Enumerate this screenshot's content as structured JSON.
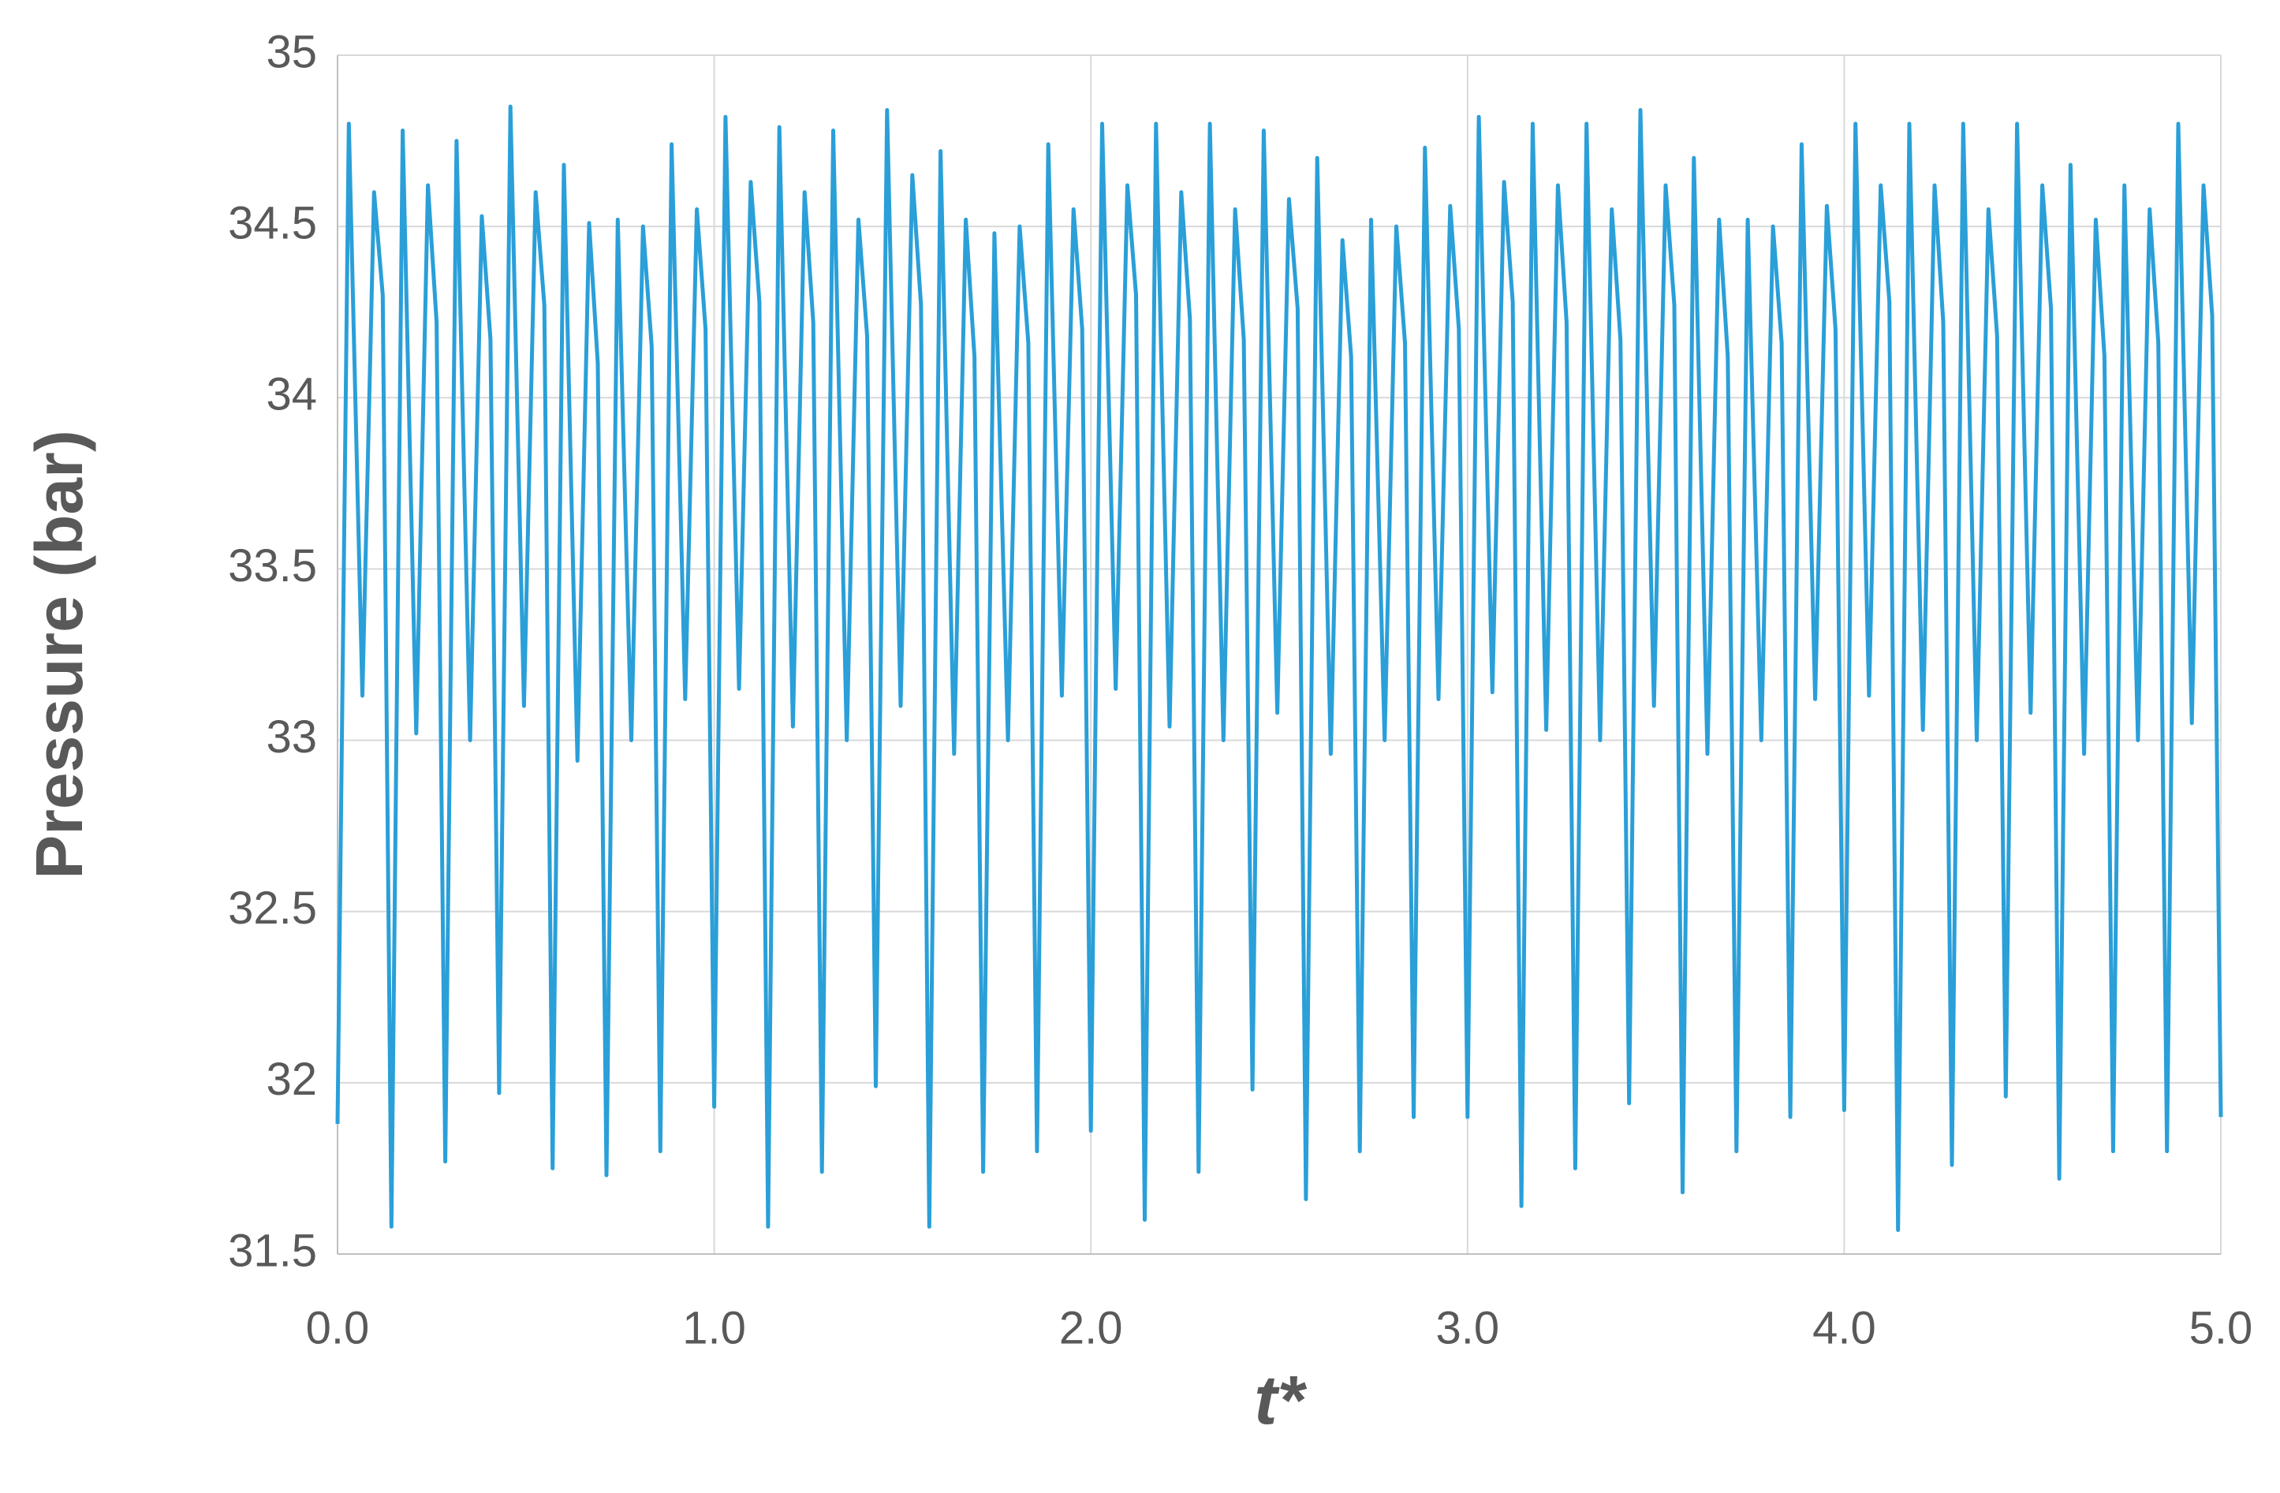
{
  "chart_data": {
    "type": "line",
    "ylabel": "Pressure (bar)",
    "xlabel": "t*",
    "xlim": [
      0,
      5
    ],
    "ylim": [
      31.5,
      35
    ],
    "xticks": [
      {
        "value": 0,
        "label": "0.0"
      },
      {
        "value": 1,
        "label": "1.0"
      },
      {
        "value": 2,
        "label": "2.0"
      },
      {
        "value": 3,
        "label": "3.0"
      },
      {
        "value": 4,
        "label": "4.0"
      },
      {
        "value": 5,
        "label": "5.0"
      }
    ],
    "yticks": [
      31.5,
      32,
      32.5,
      33,
      33.5,
      34,
      34.5,
      35
    ],
    "grid": true,
    "series": [
      {
        "color": "#2a9fd8",
        "x": [
          0.0,
          0.03,
          0.066,
          0.097,
          0.12,
          0.143,
          0.173,
          0.209,
          0.24,
          0.263,
          0.286,
          0.316,
          0.352,
          0.383,
          0.406,
          0.429,
          0.459,
          0.495,
          0.526,
          0.549,
          0.571,
          0.601,
          0.637,
          0.668,
          0.691,
          0.714,
          0.744,
          0.78,
          0.811,
          0.834,
          0.857,
          0.887,
          0.923,
          0.954,
          0.977,
          1.0,
          1.03,
          1.066,
          1.097,
          1.12,
          1.143,
          1.173,
          1.209,
          1.24,
          1.263,
          1.286,
          1.316,
          1.352,
          1.383,
          1.406,
          1.429,
          1.459,
          1.495,
          1.526,
          1.549,
          1.571,
          1.601,
          1.637,
          1.668,
          1.691,
          1.714,
          1.744,
          1.78,
          1.811,
          1.834,
          1.857,
          1.887,
          1.923,
          1.954,
          1.977,
          2.0,
          2.03,
          2.066,
          2.097,
          2.12,
          2.143,
          2.173,
          2.209,
          2.24,
          2.263,
          2.286,
          2.316,
          2.352,
          2.383,
          2.406,
          2.429,
          2.459,
          2.495,
          2.526,
          2.549,
          2.571,
          2.601,
          2.637,
          2.668,
          2.691,
          2.714,
          2.744,
          2.78,
          2.811,
          2.834,
          2.857,
          2.887,
          2.923,
          2.954,
          2.977,
          3.0,
          3.03,
          3.066,
          3.097,
          3.12,
          3.143,
          3.173,
          3.209,
          3.24,
          3.263,
          3.286,
          3.316,
          3.352,
          3.383,
          3.406,
          3.429,
          3.459,
          3.495,
          3.526,
          3.549,
          3.571,
          3.601,
          3.637,
          3.668,
          3.691,
          3.714,
          3.744,
          3.78,
          3.811,
          3.834,
          3.857,
          3.887,
          3.923,
          3.954,
          3.977,
          4.0,
          4.03,
          4.066,
          4.097,
          4.12,
          4.143,
          4.173,
          4.209,
          4.24,
          4.263,
          4.286,
          4.316,
          4.352,
          4.383,
          4.406,
          4.429,
          4.459,
          4.495,
          4.526,
          4.549,
          4.571,
          4.601,
          4.637,
          4.668,
          4.691,
          4.714,
          4.744,
          4.78,
          4.811,
          4.834,
          4.857,
          4.887,
          4.923,
          4.954,
          4.977,
          5.0
        ],
        "values": [
          31.88,
          34.8,
          33.13,
          34.6,
          34.3,
          31.58,
          34.78,
          33.02,
          34.62,
          34.22,
          31.77,
          34.75,
          33.0,
          34.53,
          34.17,
          31.97,
          34.85,
          33.1,
          34.6,
          34.27,
          31.75,
          34.68,
          32.94,
          34.51,
          34.1,
          31.73,
          34.52,
          33.0,
          34.5,
          34.15,
          31.8,
          34.74,
          33.12,
          34.55,
          34.2,
          31.93,
          34.82,
          33.15,
          34.63,
          34.28,
          31.58,
          34.79,
          33.04,
          34.6,
          34.22,
          31.74,
          34.78,
          33.0,
          34.52,
          34.18,
          31.99,
          34.84,
          33.1,
          34.65,
          34.27,
          31.58,
          34.72,
          32.96,
          34.52,
          34.12,
          31.74,
          34.48,
          33.0,
          34.5,
          34.16,
          31.8,
          34.74,
          33.13,
          34.55,
          34.2,
          31.86,
          34.8,
          33.15,
          34.62,
          34.3,
          31.6,
          34.8,
          33.04,
          34.6,
          34.23,
          31.74,
          34.8,
          33.0,
          34.55,
          34.17,
          31.98,
          34.78,
          33.08,
          34.58,
          34.26,
          31.66,
          34.7,
          32.96,
          34.46,
          34.12,
          31.8,
          34.52,
          33.0,
          34.5,
          34.16,
          31.9,
          34.73,
          33.12,
          34.56,
          34.2,
          31.9,
          34.82,
          33.14,
          34.63,
          34.28,
          31.64,
          34.8,
          33.03,
          34.62,
          34.22,
          31.75,
          34.8,
          33.0,
          34.55,
          34.17,
          31.94,
          34.84,
          33.1,
          34.62,
          34.27,
          31.68,
          34.7,
          32.96,
          34.52,
          34.12,
          31.8,
          34.52,
          33.0,
          34.5,
          34.16,
          31.9,
          34.74,
          33.12,
          34.56,
          34.2,
          31.92,
          34.8,
          33.13,
          34.62,
          34.28,
          31.57,
          34.8,
          33.03,
          34.62,
          34.22,
          31.76,
          34.8,
          33.0,
          34.55,
          34.18,
          31.96,
          34.8,
          33.08,
          34.62,
          34.26,
          31.72,
          34.68,
          32.96,
          34.52,
          34.12,
          31.8,
          34.62,
          33.0,
          34.55,
          34.16,
          31.8,
          34.8,
          33.05,
          34.62,
          34.24,
          31.9
        ]
      }
    ]
  }
}
